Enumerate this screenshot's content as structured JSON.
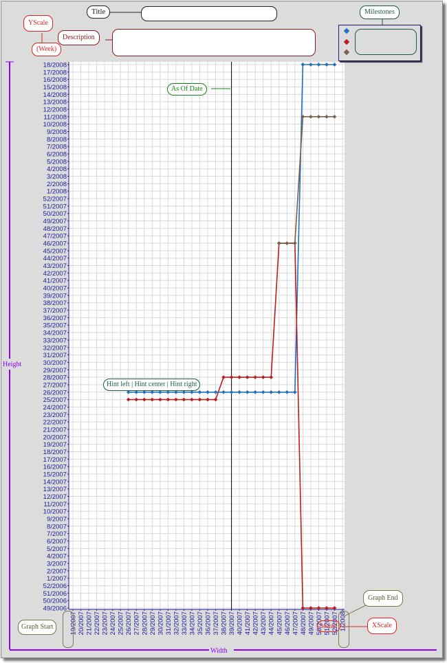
{
  "callouts": {
    "title": "Title",
    "yscale": "YScale",
    "yunit": "(Week)",
    "description": "Description",
    "milestones": "Milestones",
    "as_of_date": "As Of Date",
    "hint": "Hint left | Hint center | Hint right",
    "graph_start": "Graph Start",
    "graph_end": "Graph End",
    "xscale": "XScale",
    "month": "Month",
    "height": "Height",
    "width": "Width"
  },
  "colors": {
    "blue": "#1f6fc2",
    "red": "#b81e1e",
    "brown": "#7a6048",
    "axis": "#1a1a9a",
    "purple": "#8a00ff"
  },
  "chart_data": {
    "type": "line",
    "title": "",
    "xlabel": "",
    "ylabel": "",
    "x_ticks": [
      "19/2007",
      "20/2007",
      "21/2007",
      "22/2007",
      "23/2007",
      "24/2007",
      "25/2007",
      "26/2007",
      "27/2007",
      "28/2007",
      "29/2007",
      "30/2007",
      "31/2007",
      "32/2007",
      "33/2007",
      "34/2007",
      "35/2007",
      "36/2007",
      "37/2007",
      "38/2007",
      "39/2007",
      "40/2007",
      "41/2007",
      "42/2007",
      "43/2007",
      "44/2007",
      "45/2007",
      "46/2007",
      "47/2007",
      "48/2007",
      "49/2007",
      "50/2007",
      "51/2007",
      "52/2007",
      "1/2008"
    ],
    "y_ticks": [
      "49/2006",
      "50/2006",
      "51/2006",
      "52/2006",
      "1/2007",
      "2/2007",
      "3/2007",
      "4/2007",
      "5/2007",
      "6/2007",
      "7/2007",
      "8/2007",
      "9/2007",
      "10/2007",
      "11/2007",
      "12/2007",
      "13/2007",
      "14/2007",
      "15/2007",
      "16/2007",
      "17/2007",
      "18/2007",
      "19/2007",
      "20/2007",
      "21/2007",
      "22/2007",
      "23/2007",
      "24/2007",
      "25/2007",
      "26/2007",
      "27/2007",
      "28/2007",
      "29/2007",
      "30/2007",
      "31/2007",
      "32/2007",
      "33/2007",
      "34/2007",
      "35/2007",
      "36/2007",
      "37/2007",
      "38/2007",
      "39/2007",
      "40/2007",
      "41/2007",
      "42/2007",
      "43/2007",
      "44/2007",
      "45/2007",
      "46/2007",
      "47/2007",
      "48/2007",
      "49/2007",
      "50/2007",
      "51/2007",
      "52/2007",
      "1/2008",
      "2/2008",
      "3/2008",
      "4/2008",
      "5/2008",
      "6/2008",
      "7/2008",
      "8/2008",
      "9/2008",
      "10/2008",
      "11/2008",
      "12/2008",
      "13/2008",
      "14/2008",
      "15/2008",
      "16/2008",
      "17/2008",
      "18/2008"
    ],
    "as_of_date": "39/2007",
    "series": [
      {
        "color": "blue",
        "x": [
          "26/2007",
          "27/2007",
          "28/2007",
          "29/2007",
          "30/2007",
          "31/2007",
          "32/2007",
          "33/2007",
          "34/2007",
          "35/2007",
          "36/2007",
          "37/2007",
          "38/2007",
          "39/2007",
          "40/2007",
          "41/2007",
          "42/2007",
          "43/2007",
          "44/2007",
          "45/2007",
          "46/2007",
          "47/2007",
          "48/2007",
          "49/2007",
          "50/2007",
          "51/2007",
          "52/2007"
        ],
        "y": [
          "26/2007",
          "26/2007",
          "26/2007",
          "26/2007",
          "26/2007",
          "26/2007",
          "26/2007",
          "26/2007",
          "26/2007",
          "26/2007",
          "26/2007",
          "26/2007",
          "26/2007",
          "26/2007",
          "26/2007",
          "26/2007",
          "26/2007",
          "26/2007",
          "26/2007",
          "26/2007",
          "26/2007",
          "26/2007",
          "18/2008",
          "18/2008",
          "18/2008",
          "18/2008",
          "18/2008"
        ]
      },
      {
        "color": "red",
        "x": [
          "26/2007",
          "27/2007",
          "28/2007",
          "29/2007",
          "30/2007",
          "31/2007",
          "32/2007",
          "33/2007",
          "34/2007",
          "35/2007",
          "36/2007",
          "37/2007",
          "38/2007",
          "39/2007",
          "40/2007",
          "41/2007",
          "42/2007",
          "43/2007",
          "44/2007",
          "45/2007",
          "46/2007",
          "47/2007",
          "48/2007",
          "49/2007",
          "50/2007",
          "51/2007",
          "52/2007"
        ],
        "y": [
          "25/2007",
          "25/2007",
          "25/2007",
          "25/2007",
          "25/2007",
          "25/2007",
          "25/2007",
          "25/2007",
          "25/2007",
          "25/2007",
          "25/2007",
          "25/2007",
          "28/2007",
          "28/2007",
          "28/2007",
          "28/2007",
          "28/2007",
          "28/2007",
          "28/2007",
          "46/2007",
          "46/2007",
          "46/2007",
          "49/2006",
          "49/2006",
          "49/2006",
          "49/2006",
          "49/2006"
        ]
      },
      {
        "color": "brown",
        "x": [
          "45/2007",
          "46/2007",
          "47/2007",
          "48/2007",
          "49/2007",
          "50/2007",
          "51/2007",
          "52/2007"
        ],
        "y": [
          "46/2007",
          "46/2007",
          "46/2007",
          "11/2008",
          "11/2008",
          "11/2008",
          "11/2008",
          "11/2008"
        ]
      }
    ]
  }
}
